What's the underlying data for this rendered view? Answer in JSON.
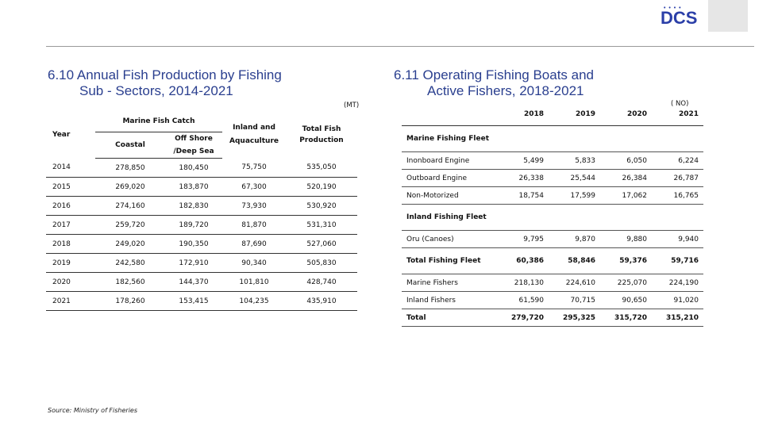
{
  "logo": {
    "dots": "• • • •",
    "text": "DCS"
  },
  "left": {
    "title_line1": "6.10  Annual Fish Production by Fishing",
    "title_line2": "Sub - Sectors, 2014-2021",
    "unit": "(MT)",
    "headers": {
      "year": "Year",
      "marine": "Marine Fish Catch",
      "coastal": "Coastal",
      "offshore": "Off Shore /Deep Sea",
      "inland": "Inland and Aquaculture",
      "total": "Total Fish Production"
    },
    "rows": [
      {
        "year": "2014",
        "coastal": "278,850",
        "offshore": "180,450",
        "inland": "75,750",
        "total": "535,050"
      },
      {
        "year": "2015",
        "coastal": "269,020",
        "offshore": "183,870",
        "inland": "67,300",
        "total": "520,190"
      },
      {
        "year": "2016",
        "coastal": "274,160",
        "offshore": "182,830",
        "inland": "73,930",
        "total": "530,920"
      },
      {
        "year": "2017",
        "coastal": "259,720",
        "offshore": "189,720",
        "inland": "81,870",
        "total": "531,310"
      },
      {
        "year": "2018",
        "coastal": "249,020",
        "offshore": "190,350",
        "inland": "87,690",
        "total": "527,060"
      },
      {
        "year": "2019",
        "coastal": "242,580",
        "offshore": "172,910",
        "inland": "90,340",
        "total": "505,830"
      },
      {
        "year": "2020",
        "coastal": "182,560",
        "offshore": "144,370",
        "inland": "101,810",
        "total": "428,740"
      },
      {
        "year": "2021",
        "coastal": "178,260",
        "offshore": "153,415",
        "inland": "104,235",
        "total": "435,910"
      }
    ]
  },
  "right": {
    "title_line1": "6.11 Operating Fishing Boats  and",
    "title_line2": "Active Fishers,  2018-2021",
    "unit": "( NO)",
    "years": [
      "2018",
      "2019",
      "2020",
      "2021"
    ],
    "rows": [
      {
        "label": "Marine Fishing Fleet",
        "values": [
          "",
          "",
          "",
          ""
        ],
        "kind": "cat"
      },
      {
        "label": "Inonboard Engine",
        "values": [
          "5,499",
          "5,833",
          "6,050",
          "6,224"
        ],
        "kind": "row"
      },
      {
        "label": "Outboard Engine",
        "values": [
          "26,338",
          "25,544",
          "26,384",
          "26,787"
        ],
        "kind": "row"
      },
      {
        "label": "Non-Motorized",
        "values": [
          "18,754",
          "17,599",
          "17,062",
          "16,765"
        ],
        "kind": "row"
      },
      {
        "label": "Inland Fishing Fleet",
        "values": [
          "",
          "",
          "",
          ""
        ],
        "kind": "cat"
      },
      {
        "label": "Oru (Canoes)",
        "values": [
          "9,795",
          "9,870",
          "9,880",
          "9,940"
        ],
        "kind": "row"
      },
      {
        "label": "Total Fishing Fleet",
        "values": [
          "60,386",
          "58,846",
          "59,376",
          "59,716"
        ],
        "kind": "totalcat"
      },
      {
        "label": "Marine Fishers",
        "values": [
          "218,130",
          "224,610",
          "225,070",
          "224,190"
        ],
        "kind": "row"
      },
      {
        "label": "Inland Fishers",
        "values": [
          "61,590",
          "70,715",
          "90,650",
          "91,020"
        ],
        "kind": "row"
      },
      {
        "label": "Total",
        "values": [
          "279,720",
          "295,325",
          "315,720",
          "315,210"
        ],
        "kind": "total"
      }
    ]
  },
  "source": "Source:  Ministry of Fisheries"
}
